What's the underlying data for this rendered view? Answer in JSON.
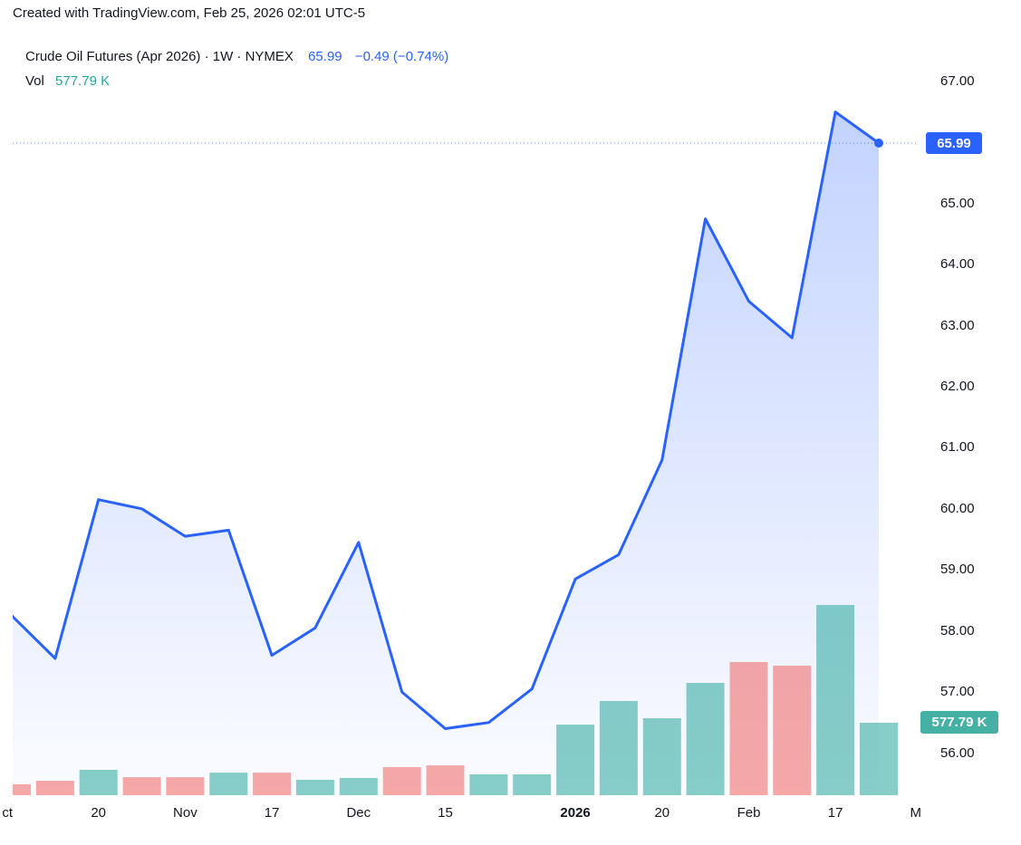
{
  "attribution": "Created with TradingView.com, Feb 25, 2026 02:01 UTC-5",
  "legend": {
    "symbol": "Crude Oil Futures (Apr 2026) · 1W · NYMEX",
    "last_price": "65.99",
    "change": "−0.49 (−0.74%)",
    "vol_label": "Vol",
    "vol_value": "577.79 K"
  },
  "badges": {
    "price": "65.99",
    "volume": "577.79 K"
  },
  "colors": {
    "accent_blue": "#2962ff",
    "text": "#131722",
    "teal_text": "#26a69a",
    "volume_up": "rgba(38,166,154,0.55)",
    "volume_down": "rgba(239,83,80,0.5)",
    "volume_badge_bg": "#45b1a5",
    "price_badge_bg": "#2962ff"
  },
  "chart_data": {
    "type": "line",
    "title": "Crude Oil Futures (Apr 2026) · 1W · NYMEX",
    "subtitle": "Weekly close with volume, area style",
    "ylim": [
      55.31,
      67.74
    ],
    "grid": false,
    "legend_position": "top-left",
    "y_ticks": [
      67,
      66,
      65,
      64,
      63,
      62,
      61,
      60,
      59,
      58,
      57,
      56
    ],
    "x_ticks": [
      {
        "i": -0.1,
        "label": "ct"
      },
      {
        "i": 2,
        "label": "20"
      },
      {
        "i": 4,
        "label": "Nov"
      },
      {
        "i": 6,
        "label": "17"
      },
      {
        "i": 8,
        "label": "Dec"
      },
      {
        "i": 10,
        "label": "15"
      },
      {
        "i": 13,
        "label": "2026",
        "bold": true
      },
      {
        "i": 15,
        "label": "20"
      },
      {
        "i": 17,
        "label": "Feb"
      },
      {
        "i": 19,
        "label": "17"
      },
      {
        "i": 20.85,
        "label": "M"
      }
    ],
    "series": [
      {
        "name": "Close",
        "type": "area",
        "values": [
          58.25,
          57.55,
          60.15,
          60.0,
          59.55,
          59.65,
          57.6,
          58.05,
          59.45,
          57.0,
          56.4,
          56.5,
          57.05,
          58.85,
          59.25,
          60.8,
          64.75,
          63.4,
          62.8,
          66.5,
          65.99
        ]
      },
      {
        "name": "Volume",
        "type": "bar",
        "unit": "K",
        "values": [
          87,
          115,
          202,
          144,
          144,
          180,
          180,
          123,
          137,
          224,
          238,
          166,
          166,
          563,
          751,
          614,
          896,
          1062,
          1033,
          1517,
          577.79
        ],
        "directions": [
          "down",
          "down",
          "up",
          "down",
          "down",
          "up",
          "down",
          "up",
          "up",
          "down",
          "down",
          "up",
          "up",
          "up",
          "up",
          "up",
          "up",
          "down",
          "down",
          "up",
          "up"
        ]
      }
    ],
    "last_price": 65.99,
    "last_volume_k": 577.79
  }
}
